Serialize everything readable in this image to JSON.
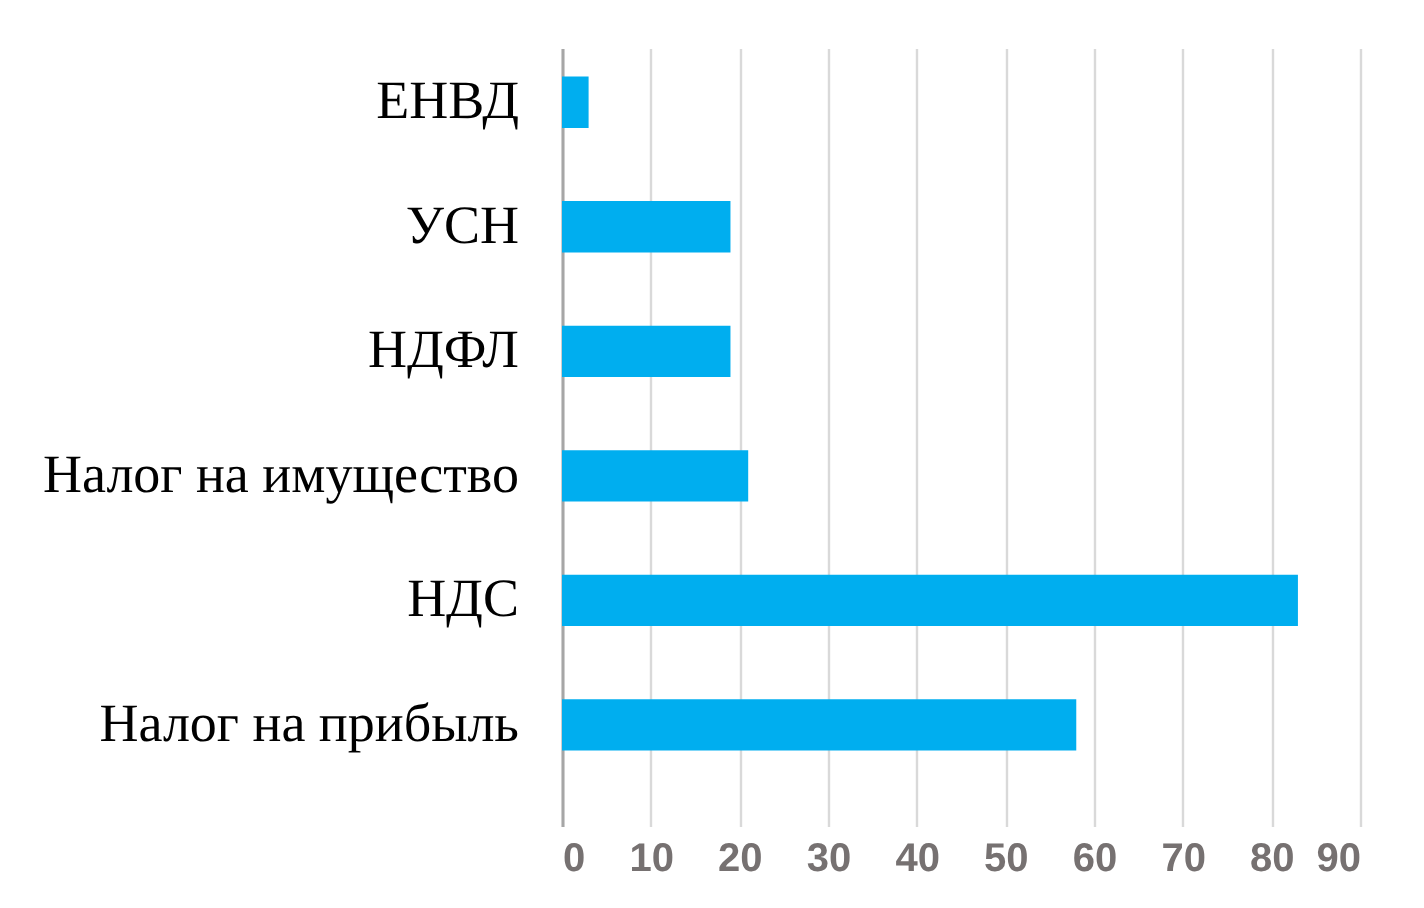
{
  "chart_data": {
    "type": "bar",
    "orientation": "horizontal",
    "categories": [
      "ЕНВД",
      "УСН",
      "НДФЛ",
      "Налог на имущество",
      "НДС",
      "Налог на прибыль"
    ],
    "values": [
      3,
      19,
      19,
      21,
      83,
      58
    ],
    "color": "#00aeef",
    "xlim": [
      0,
      90
    ],
    "xticks": [
      0,
      10,
      20,
      30,
      40,
      50,
      60,
      70,
      80,
      90
    ],
    "grid": "x"
  }
}
